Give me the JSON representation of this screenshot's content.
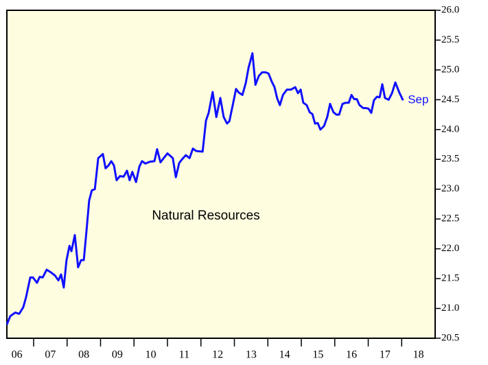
{
  "chart_data": {
    "type": "line",
    "annotations": [
      "Natural Resources",
      "Sep"
    ],
    "xlim": [
      2006.2,
      2019.0
    ],
    "xticks": [
      2007,
      2008,
      2009,
      2010,
      2011,
      2012,
      2013,
      2014,
      2015,
      2016,
      2017,
      2018
    ],
    "xlabels": [
      {
        "value": 2006.5,
        "label": "06"
      },
      {
        "value": 2007.5,
        "label": "07"
      },
      {
        "value": 2008.5,
        "label": "08"
      },
      {
        "value": 2009.5,
        "label": "09"
      },
      {
        "value": 2010.5,
        "label": "10"
      },
      {
        "value": 2011.5,
        "label": "11"
      },
      {
        "value": 2012.5,
        "label": "12"
      },
      {
        "value": 2013.5,
        "label": "13"
      },
      {
        "value": 2014.5,
        "label": "14"
      },
      {
        "value": 2015.5,
        "label": "15"
      },
      {
        "value": 2016.5,
        "label": "16"
      },
      {
        "value": 2017.5,
        "label": "17"
      },
      {
        "value": 2018.5,
        "label": "18"
      }
    ],
    "ylim": [
      20.5,
      26.0
    ],
    "yticks": [
      20.5,
      {
        "value": 21,
        "label": "21.0"
      },
      21.5,
      {
        "value": 22,
        "label": "22.0"
      },
      22.5,
      {
        "value": 23,
        "label": "23.0"
      },
      23.5,
      {
        "value": 24,
        "label": "24.0"
      },
      24.5,
      {
        "value": 25,
        "label": "25.0"
      },
      25.5,
      {
        "value": 26,
        "label": "26.0"
      }
    ],
    "background": "#fffde0",
    "series": [
      {
        "color": "#1010ff",
        "x": [
          2006.2,
          2006.3,
          2006.45,
          2006.57,
          2006.69,
          2006.77,
          2006.9,
          2006.98,
          2007.1,
          2007.18,
          2007.27,
          2007.39,
          2007.53,
          2007.64,
          2007.74,
          2007.82,
          2007.9,
          2007.98,
          2008.07,
          2008.13,
          2008.23,
          2008.33,
          2008.42,
          2008.5,
          2008.58,
          2008.66,
          2008.74,
          2008.83,
          2008.93,
          2009.07,
          2009.15,
          2009.24,
          2009.32,
          2009.4,
          2009.48,
          2009.58,
          2009.69,
          2009.79,
          2009.87,
          2009.95,
          2010.06,
          2010.16,
          2010.24,
          2010.34,
          2010.47,
          2010.61,
          2010.69,
          2010.79,
          2010.9,
          2011.0,
          2011.1,
          2011.16,
          2011.25,
          2011.35,
          2011.45,
          2011.55,
          2011.66,
          2011.76,
          2011.86,
          2012.05,
          2012.15,
          2012.23,
          2012.35,
          2012.46,
          2012.58,
          2012.68,
          2012.78,
          2012.85,
          2012.97,
          2013.05,
          2013.13,
          2013.24,
          2013.34,
          2013.42,
          2013.54,
          2013.63,
          2013.73,
          2013.83,
          2013.93,
          2014.02,
          2014.12,
          2014.2,
          2014.28,
          2014.36,
          2014.45,
          2014.57,
          2014.69,
          2014.82,
          2014.9,
          2014.98,
          2015.06,
          2015.16,
          2015.25,
          2015.33,
          2015.41,
          2015.49,
          2015.57,
          2015.68,
          2015.78,
          2015.86,
          2015.96,
          2016.05,
          2016.13,
          2016.23,
          2016.33,
          2016.42,
          2016.5,
          2016.58,
          2016.66,
          2016.74,
          2016.85,
          2016.93,
          2017.01,
          2017.09,
          2017.17,
          2017.26,
          2017.34,
          2017.42,
          2017.5,
          2017.61,
          2017.71,
          2017.81,
          2017.93,
          2018.04
        ],
        "values": [
          20.73,
          20.87,
          20.93,
          20.91,
          21.02,
          21.18,
          21.52,
          21.52,
          21.43,
          21.53,
          21.52,
          21.65,
          21.6,
          21.55,
          21.47,
          21.57,
          21.35,
          21.8,
          22.05,
          21.96,
          22.23,
          21.69,
          21.81,
          21.81,
          22.3,
          22.81,
          22.98,
          23.0,
          23.52,
          23.59,
          23.35,
          23.4,
          23.47,
          23.4,
          23.15,
          23.22,
          23.21,
          23.31,
          23.15,
          23.29,
          23.12,
          23.38,
          23.47,
          23.43,
          23.46,
          23.47,
          23.67,
          23.45,
          23.53,
          23.6,
          23.55,
          23.52,
          23.2,
          23.44,
          23.51,
          23.57,
          23.52,
          23.68,
          23.64,
          23.63,
          24.15,
          24.28,
          24.63,
          24.21,
          24.53,
          24.21,
          24.1,
          24.14,
          24.46,
          24.68,
          24.62,
          24.58,
          24.78,
          25.03,
          25.28,
          24.75,
          24.9,
          24.96,
          24.96,
          24.94,
          24.8,
          24.71,
          24.52,
          24.41,
          24.58,
          24.67,
          24.67,
          24.71,
          24.61,
          24.67,
          24.45,
          24.41,
          24.29,
          24.26,
          24.1,
          24.11,
          24.0,
          24.06,
          24.22,
          24.43,
          24.29,
          24.25,
          24.25,
          24.43,
          24.45,
          24.45,
          24.58,
          24.51,
          24.51,
          24.41,
          24.36,
          24.36,
          24.35,
          24.28,
          24.49,
          24.55,
          24.54,
          24.76,
          24.53,
          24.5,
          24.61,
          24.79,
          24.62,
          24.49
        ]
      }
    ]
  }
}
